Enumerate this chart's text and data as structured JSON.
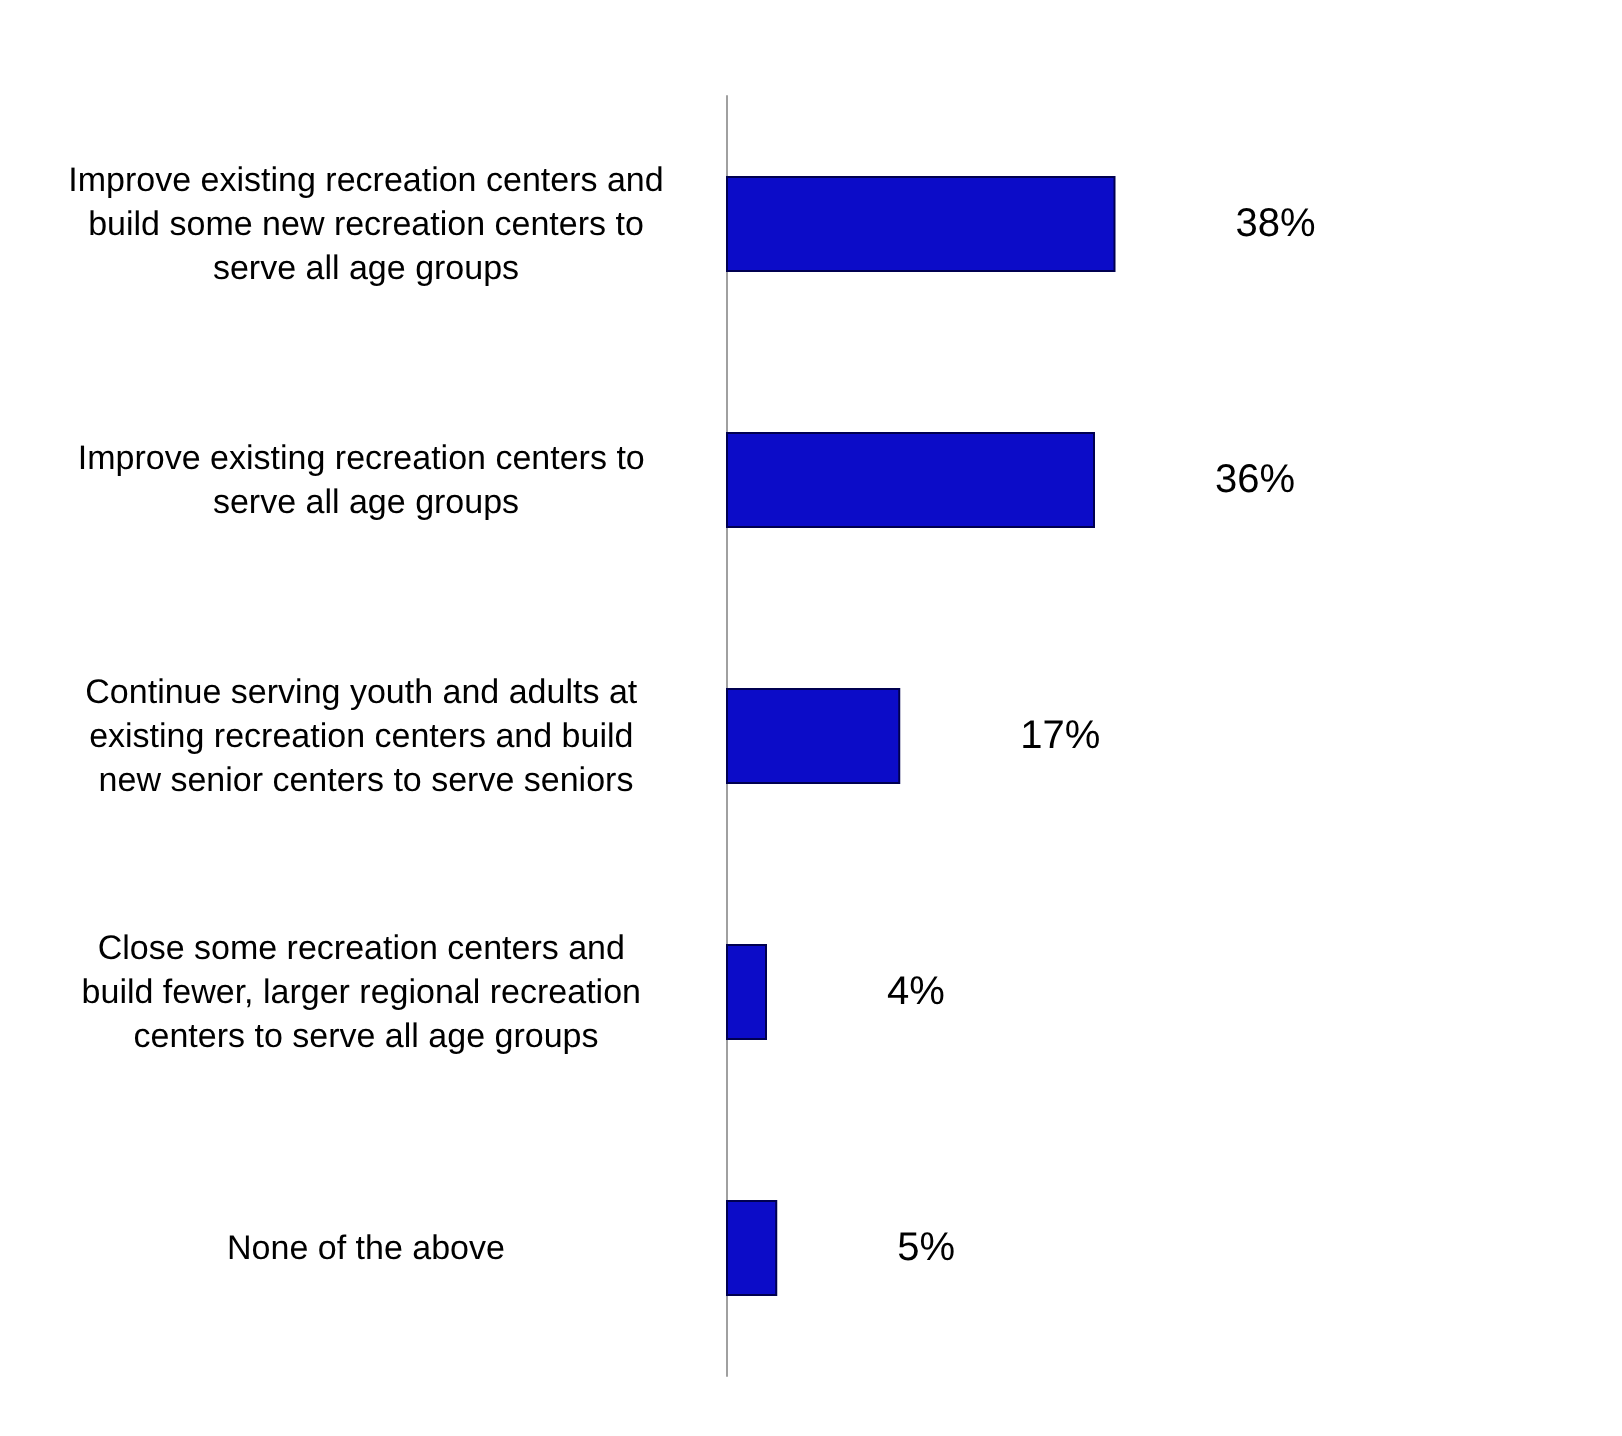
{
  "chart_data": {
    "type": "bar",
    "orientation": "horizontal",
    "categories": [
      "Improve existing recreation centers and build some new recreation centers to serve all age groups",
      "Improve existing recreation centers to serve all age groups",
      "Continue serving youth and adults at existing recreation centers and build new senior centers to serve seniors",
      "Close some recreation centers and build fewer, larger regional recreation centers to serve all age groups",
      "None of the above"
    ],
    "values": [
      38,
      36,
      17,
      4,
      5
    ],
    "value_labels": [
      "38%",
      "36%",
      "17%",
      "4%",
      "5%"
    ],
    "color": "#0c0cc8",
    "tick_labels": "y"
  }
}
